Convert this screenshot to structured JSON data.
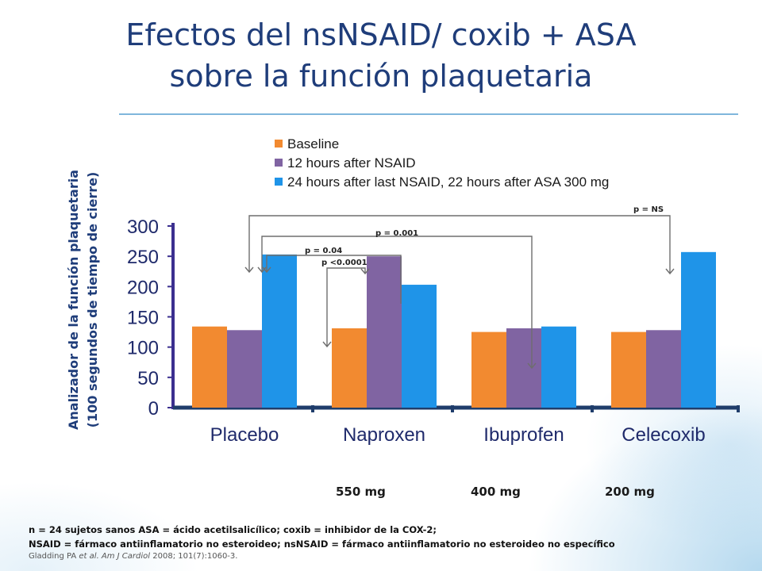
{
  "slide": {
    "title_line1": "Efectos del nsNSAID/ coxib + ASA",
    "title_line2": "sobre la función plaquetaria",
    "doses": [
      "550 mg",
      "400 mg",
      "200 mg"
    ],
    "footnote_line1": "n = 24 sujetos sanos ASA = ácido acetilsalicílico; coxib = inhibidor de la COX-2;",
    "footnote_line2": "NSAID = fármaco antiinflamatorio no esteroideo; nsNSAID = fármaco antiinflamatorio no esteroideo no específico",
    "citation_author": "Gladding PA ",
    "citation_etal": "et al. Am J Cardiol",
    "citation_rest": " 2008; 101(7):1060-3."
  },
  "chart_data": {
    "type": "bar",
    "ylabel_line1": "Analizador de la función plaquetaria",
    "ylabel_line2": "(100 segundos de tiempo de cierre)",
    "categories": [
      "Placebo",
      "Naproxen",
      "Ibuprofen",
      "Celecoxib"
    ],
    "ylim": [
      0,
      300
    ],
    "yticks": [
      0,
      50,
      100,
      150,
      200,
      250,
      300
    ],
    "series": [
      {
        "name": "Baseline",
        "color": "#f28a30",
        "values": [
          134,
          131,
          125,
          125
        ]
      },
      {
        "name": "12 hours after NSAID",
        "color": "#8064a2",
        "values": [
          128,
          250,
          131,
          128
        ]
      },
      {
        "name": "24 hours after last NSAID, 22 hours after ASA 300 mg",
        "color": "#1f94e8",
        "values": [
          253,
          203,
          134,
          257
        ]
      }
    ],
    "legend_position": "top",
    "grid": false,
    "annotations": [
      {
        "label": "p = NS"
      },
      {
        "label": "p = 0.001"
      },
      {
        "label": "p = 0.04"
      },
      {
        "label": "p <0.0001"
      }
    ]
  }
}
